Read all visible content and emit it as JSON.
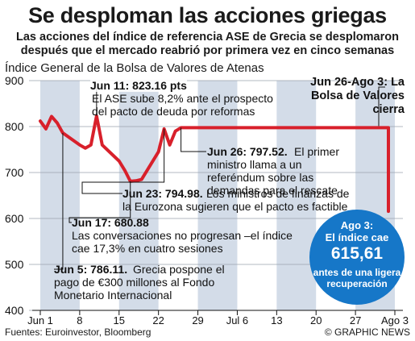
{
  "header": {
    "title": "Se desploman las acciones griegas",
    "subtitle_line1": "Las acciones del índice de referencia ASE de Grecia se desplomaron",
    "subtitle_line2": "después que el mercado reabrió por primera vez en cinco semanas"
  },
  "chart_data": {
    "type": "line",
    "title": "Índice General de la Bolsa de Valores de Atenas",
    "xlabel": "",
    "ylabel": "",
    "ylim": [
      400,
      900
    ],
    "yticks": [
      400,
      500,
      600,
      700,
      800,
      900
    ],
    "xticks": [
      "Jun 1",
      "8",
      "15",
      "22",
      "29",
      "Jul 6",
      "13",
      "20",
      "27",
      "Ago 3"
    ],
    "grid": true,
    "series": [
      {
        "values": [
          [
            "2015-06-01",
            812
          ],
          [
            "2015-06-02",
            795
          ],
          [
            "2015-06-03",
            822
          ],
          [
            "2015-06-04",
            808
          ],
          [
            "2015-06-05",
            786.11
          ],
          [
            "2015-06-08",
            760
          ],
          [
            "2015-06-09",
            753
          ],
          [
            "2015-06-10",
            760
          ],
          [
            "2015-06-11",
            823.16
          ],
          [
            "2015-06-12",
            760
          ],
          [
            "2015-06-15",
            725
          ],
          [
            "2015-06-16",
            705
          ],
          [
            "2015-06-17",
            680.88
          ],
          [
            "2015-06-18",
            682
          ],
          [
            "2015-06-19",
            685
          ],
          [
            "2015-06-22",
            745
          ],
          [
            "2015-06-23",
            794.98
          ],
          [
            "2015-06-24",
            760
          ],
          [
            "2015-06-25",
            790
          ],
          [
            "2015-06-26",
            797.52
          ],
          [
            "2015-08-03",
            615.61
          ]
        ]
      }
    ],
    "annotations": [
      {
        "date": "Jun 11",
        "value": "823.16 pts",
        "text": "El ASE sube 8,2% ante el prospecto del pacto de deuda por reformas"
      },
      {
        "date": "Jun 26",
        "value": "797.52.",
        "text": "El primer ministro llama a un referéndum sobre las demandas para el rescate"
      },
      {
        "date": "Jun 23",
        "value": "794.98.",
        "text": "Los ministros de finanzas de la Eurozona sugieren que el pacto es factible"
      },
      {
        "date": "Jun 17",
        "value": "680.88",
        "text": "Las conversaciones no progresan –el índice cae 17,3% en cuatro sesiones"
      },
      {
        "date": "Jun 5",
        "value": "786.11.",
        "text": "Grecia pospone el pago de €300 millones al Fondo Monetario Internacional"
      }
    ],
    "closed_label": "Jun 26-Ago 3: La Bolsa de Valores cierra",
    "callout": {
      "line1": "Ago 3:",
      "line2": "El índice cae",
      "value": "615,61",
      "line3": "antes de una ligera",
      "line4": "recuperación"
    },
    "colors": {
      "line": "#d8202b",
      "bands": "#d3dce8",
      "callout": "#1677c8",
      "connector": "#111111"
    }
  },
  "footer": {
    "source": "Fuentes: Euroinvestor, Bloomberg",
    "credit": "© GRAPHIC NEWS"
  }
}
